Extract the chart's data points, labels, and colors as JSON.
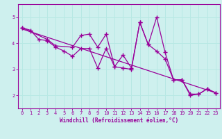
{
  "xlabel": "Windchill (Refroidissement éolien,°C)",
  "xlim": [
    -0.5,
    23.5
  ],
  "ylim": [
    1.5,
    5.5
  ],
  "yticks": [
    2,
    3,
    4,
    5
  ],
  "xticks": [
    0,
    1,
    2,
    3,
    4,
    5,
    6,
    7,
    8,
    9,
    10,
    11,
    12,
    13,
    14,
    15,
    16,
    17,
    18,
    19,
    20,
    21,
    22,
    23
  ],
  "bg_color": "#cef0ee",
  "line_color": "#990099",
  "grid_color": "#b8e8e4",
  "series1_x": [
    0,
    1,
    2,
    3,
    4,
    5,
    6,
    7,
    8,
    9,
    10,
    11,
    12,
    13,
    14,
    15,
    16,
    17,
    18,
    19,
    20,
    21,
    22,
    23
  ],
  "series1_y": [
    4.6,
    4.5,
    4.15,
    4.1,
    3.85,
    3.7,
    3.5,
    3.8,
    3.8,
    3.05,
    3.8,
    3.1,
    3.05,
    3.0,
    4.8,
    3.95,
    5.0,
    3.65,
    2.6,
    2.6,
    2.05,
    2.05,
    2.25,
    2.1
  ],
  "series2_x": [
    0,
    1,
    3,
    4,
    6,
    7,
    8,
    9,
    10,
    11,
    12,
    13,
    14,
    15,
    16,
    17,
    18,
    19,
    20,
    21,
    22,
    23
  ],
  "series2_y": [
    4.6,
    4.45,
    4.15,
    3.9,
    3.85,
    4.3,
    4.35,
    3.85,
    4.35,
    3.1,
    3.55,
    3.05,
    4.8,
    3.95,
    3.7,
    3.4,
    2.6,
    2.6,
    2.0,
    2.05,
    2.25,
    2.1
  ],
  "trend_x": [
    0,
    23
  ],
  "trend_y": [
    4.55,
    2.1
  ]
}
